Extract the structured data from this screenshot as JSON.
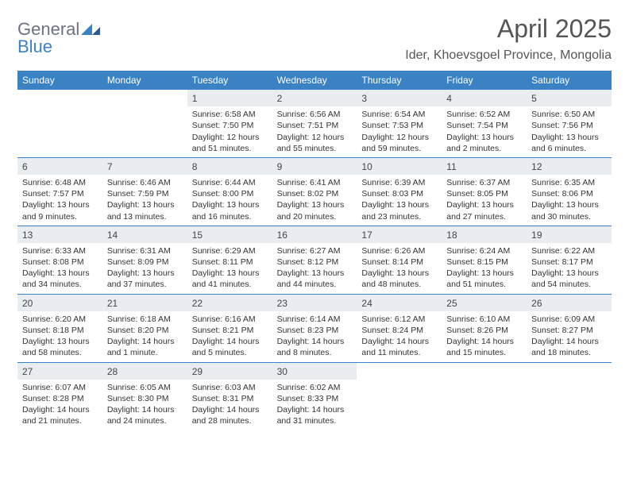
{
  "logo": {
    "text1": "General",
    "text2": "Blue"
  },
  "title": "April 2025",
  "location": "Ider, Khoevsgoel Province, Mongolia",
  "dayNames": [
    "Sunday",
    "Monday",
    "Tuesday",
    "Wednesday",
    "Thursday",
    "Friday",
    "Saturday"
  ],
  "colors": {
    "headerBlue": "#3b82c4",
    "dayNumBg": "#e9edef",
    "borderBlue": "#3b82c4",
    "text": "#333333",
    "logoGray": "#6b7280"
  },
  "layout": {
    "cols": 7,
    "rows": 5,
    "cellFont": 10.5,
    "headerFont": 12
  },
  "weeks": [
    [
      {
        "n": "",
        "lines": []
      },
      {
        "n": "",
        "lines": []
      },
      {
        "n": "1",
        "lines": [
          "Sunrise: 6:58 AM",
          "Sunset: 7:50 PM",
          "Daylight: 12 hours",
          "and 51 minutes."
        ]
      },
      {
        "n": "2",
        "lines": [
          "Sunrise: 6:56 AM",
          "Sunset: 7:51 PM",
          "Daylight: 12 hours",
          "and 55 minutes."
        ]
      },
      {
        "n": "3",
        "lines": [
          "Sunrise: 6:54 AM",
          "Sunset: 7:53 PM",
          "Daylight: 12 hours",
          "and 59 minutes."
        ]
      },
      {
        "n": "4",
        "lines": [
          "Sunrise: 6:52 AM",
          "Sunset: 7:54 PM",
          "Daylight: 13 hours",
          "and 2 minutes."
        ]
      },
      {
        "n": "5",
        "lines": [
          "Sunrise: 6:50 AM",
          "Sunset: 7:56 PM",
          "Daylight: 13 hours",
          "and 6 minutes."
        ]
      }
    ],
    [
      {
        "n": "6",
        "lines": [
          "Sunrise: 6:48 AM",
          "Sunset: 7:57 PM",
          "Daylight: 13 hours",
          "and 9 minutes."
        ]
      },
      {
        "n": "7",
        "lines": [
          "Sunrise: 6:46 AM",
          "Sunset: 7:59 PM",
          "Daylight: 13 hours",
          "and 13 minutes."
        ]
      },
      {
        "n": "8",
        "lines": [
          "Sunrise: 6:44 AM",
          "Sunset: 8:00 PM",
          "Daylight: 13 hours",
          "and 16 minutes."
        ]
      },
      {
        "n": "9",
        "lines": [
          "Sunrise: 6:41 AM",
          "Sunset: 8:02 PM",
          "Daylight: 13 hours",
          "and 20 minutes."
        ]
      },
      {
        "n": "10",
        "lines": [
          "Sunrise: 6:39 AM",
          "Sunset: 8:03 PM",
          "Daylight: 13 hours",
          "and 23 minutes."
        ]
      },
      {
        "n": "11",
        "lines": [
          "Sunrise: 6:37 AM",
          "Sunset: 8:05 PM",
          "Daylight: 13 hours",
          "and 27 minutes."
        ]
      },
      {
        "n": "12",
        "lines": [
          "Sunrise: 6:35 AM",
          "Sunset: 8:06 PM",
          "Daylight: 13 hours",
          "and 30 minutes."
        ]
      }
    ],
    [
      {
        "n": "13",
        "lines": [
          "Sunrise: 6:33 AM",
          "Sunset: 8:08 PM",
          "Daylight: 13 hours",
          "and 34 minutes."
        ]
      },
      {
        "n": "14",
        "lines": [
          "Sunrise: 6:31 AM",
          "Sunset: 8:09 PM",
          "Daylight: 13 hours",
          "and 37 minutes."
        ]
      },
      {
        "n": "15",
        "lines": [
          "Sunrise: 6:29 AM",
          "Sunset: 8:11 PM",
          "Daylight: 13 hours",
          "and 41 minutes."
        ]
      },
      {
        "n": "16",
        "lines": [
          "Sunrise: 6:27 AM",
          "Sunset: 8:12 PM",
          "Daylight: 13 hours",
          "and 44 minutes."
        ]
      },
      {
        "n": "17",
        "lines": [
          "Sunrise: 6:26 AM",
          "Sunset: 8:14 PM",
          "Daylight: 13 hours",
          "and 48 minutes."
        ]
      },
      {
        "n": "18",
        "lines": [
          "Sunrise: 6:24 AM",
          "Sunset: 8:15 PM",
          "Daylight: 13 hours",
          "and 51 minutes."
        ]
      },
      {
        "n": "19",
        "lines": [
          "Sunrise: 6:22 AM",
          "Sunset: 8:17 PM",
          "Daylight: 13 hours",
          "and 54 minutes."
        ]
      }
    ],
    [
      {
        "n": "20",
        "lines": [
          "Sunrise: 6:20 AM",
          "Sunset: 8:18 PM",
          "Daylight: 13 hours",
          "and 58 minutes."
        ]
      },
      {
        "n": "21",
        "lines": [
          "Sunrise: 6:18 AM",
          "Sunset: 8:20 PM",
          "Daylight: 14 hours",
          "and 1 minute."
        ]
      },
      {
        "n": "22",
        "lines": [
          "Sunrise: 6:16 AM",
          "Sunset: 8:21 PM",
          "Daylight: 14 hours",
          "and 5 minutes."
        ]
      },
      {
        "n": "23",
        "lines": [
          "Sunrise: 6:14 AM",
          "Sunset: 8:23 PM",
          "Daylight: 14 hours",
          "and 8 minutes."
        ]
      },
      {
        "n": "24",
        "lines": [
          "Sunrise: 6:12 AM",
          "Sunset: 8:24 PM",
          "Daylight: 14 hours",
          "and 11 minutes."
        ]
      },
      {
        "n": "25",
        "lines": [
          "Sunrise: 6:10 AM",
          "Sunset: 8:26 PM",
          "Daylight: 14 hours",
          "and 15 minutes."
        ]
      },
      {
        "n": "26",
        "lines": [
          "Sunrise: 6:09 AM",
          "Sunset: 8:27 PM",
          "Daylight: 14 hours",
          "and 18 minutes."
        ]
      }
    ],
    [
      {
        "n": "27",
        "lines": [
          "Sunrise: 6:07 AM",
          "Sunset: 8:28 PM",
          "Daylight: 14 hours",
          "and 21 minutes."
        ]
      },
      {
        "n": "28",
        "lines": [
          "Sunrise: 6:05 AM",
          "Sunset: 8:30 PM",
          "Daylight: 14 hours",
          "and 24 minutes."
        ]
      },
      {
        "n": "29",
        "lines": [
          "Sunrise: 6:03 AM",
          "Sunset: 8:31 PM",
          "Daylight: 14 hours",
          "and 28 minutes."
        ]
      },
      {
        "n": "30",
        "lines": [
          "Sunrise: 6:02 AM",
          "Sunset: 8:33 PM",
          "Daylight: 14 hours",
          "and 31 minutes."
        ]
      },
      {
        "n": "",
        "lines": []
      },
      {
        "n": "",
        "lines": []
      },
      {
        "n": "",
        "lines": []
      }
    ]
  ]
}
